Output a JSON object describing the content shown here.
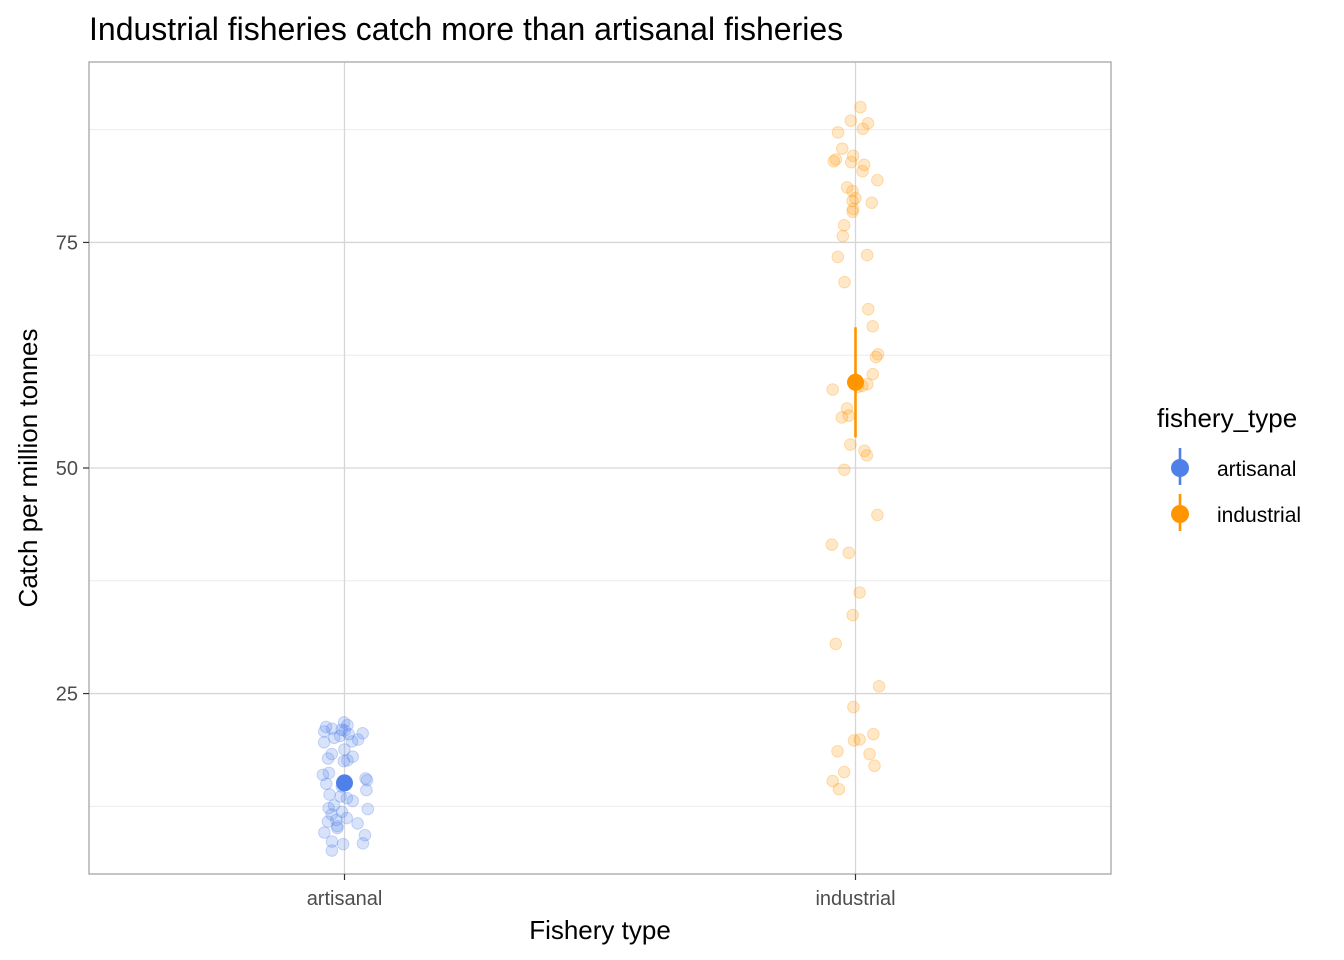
{
  "chart_data": {
    "type": "scatter",
    "title": "Industrial fisheries catch more than artisanal fisheries",
    "xlabel": "Fishery type",
    "ylabel": "Catch per million tonnes",
    "categories": [
      "artisanal",
      "industrial"
    ],
    "ylim": [
      5,
      95
    ],
    "yticks": [
      25,
      50,
      75
    ],
    "yticks_labels": [
      "25",
      "50",
      "75"
    ],
    "grid": true,
    "legend": {
      "title": "fishery_type",
      "placement": "right",
      "entries": [
        "artisanal",
        "industrial"
      ]
    },
    "series": [
      {
        "name": "artisanal",
        "color": "#4f7fe8",
        "mean": 15.1,
        "ci": [
          15.1,
          15.1
        ],
        "points": [
          21.8,
          21.5,
          21.3,
          21.1,
          21.0,
          20.9,
          20.8,
          20.6,
          20.5,
          20.3,
          20.1,
          19.9,
          19.7,
          19.6,
          18.8,
          18.3,
          18.0,
          17.8,
          17.6,
          17.5,
          16.2,
          16.0,
          15.6,
          15.4,
          15.0,
          14.7,
          14.3,
          13.8,
          13.6,
          13.4,
          13.1,
          12.6,
          12.3,
          12.2,
          11.9,
          11.6,
          11.2,
          11.0,
          10.8,
          10.6,
          10.3,
          10.1,
          9.6,
          9.3,
          8.6,
          8.4,
          8.3,
          7.6
        ]
      },
      {
        "name": "industrial",
        "color": "#ff9500",
        "mean": 59.5,
        "ci": [
          53.4,
          65.6
        ],
        "points": [
          90.0,
          88.5,
          88.2,
          87.6,
          87.2,
          85.4,
          84.6,
          84.2,
          84.0,
          83.9,
          83.6,
          82.9,
          81.9,
          81.1,
          80.7,
          79.9,
          79.6,
          79.4,
          78.7,
          78.4,
          76.9,
          75.7,
          73.6,
          73.4,
          70.6,
          67.6,
          65.7,
          62.6,
          62.3,
          60.4,
          59.3,
          59.1,
          59.0,
          58.7,
          56.6,
          55.8,
          55.6,
          52.6,
          51.9,
          51.4,
          49.8,
          44.8,
          41.5,
          40.6,
          36.2,
          33.7,
          30.5,
          25.8,
          23.5,
          20.5,
          19.9,
          19.8,
          18.6,
          18.3,
          17.0,
          16.3,
          15.3,
          14.4
        ]
      }
    ]
  }
}
